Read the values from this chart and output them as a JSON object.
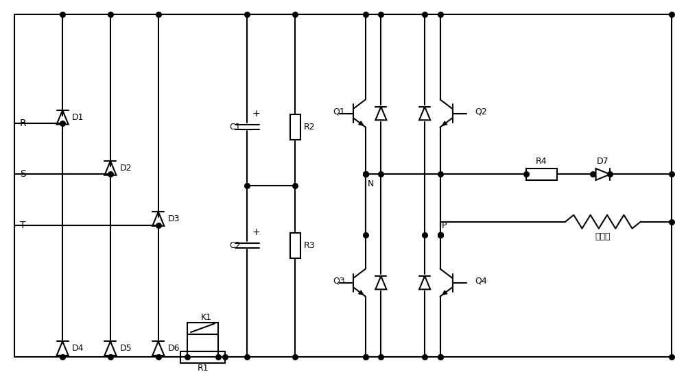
{
  "bg": "#ffffff",
  "lc": "#000000",
  "lw": 1.5,
  "ds": 5.5,
  "fw": 10.0,
  "fh": 5.46,
  "dpi": 100,
  "labels": {
    "R": "R",
    "S": "S",
    "T": "T",
    "D1": "D1",
    "D2": "D2",
    "D3": "D3",
    "D4": "D4",
    "D5": "D5",
    "D6": "D6",
    "D7": "D7",
    "C1": "C1",
    "C2": "C2",
    "R1": "R1",
    "R2": "R2",
    "R3": "R3",
    "R4": "R4",
    "K1": "K1",
    "Q1": "Q1",
    "Q2": "Q2",
    "Q3": "Q3",
    "Q4": "Q4",
    "N": "N",
    "P": "P",
    "em": "电磁铁"
  }
}
